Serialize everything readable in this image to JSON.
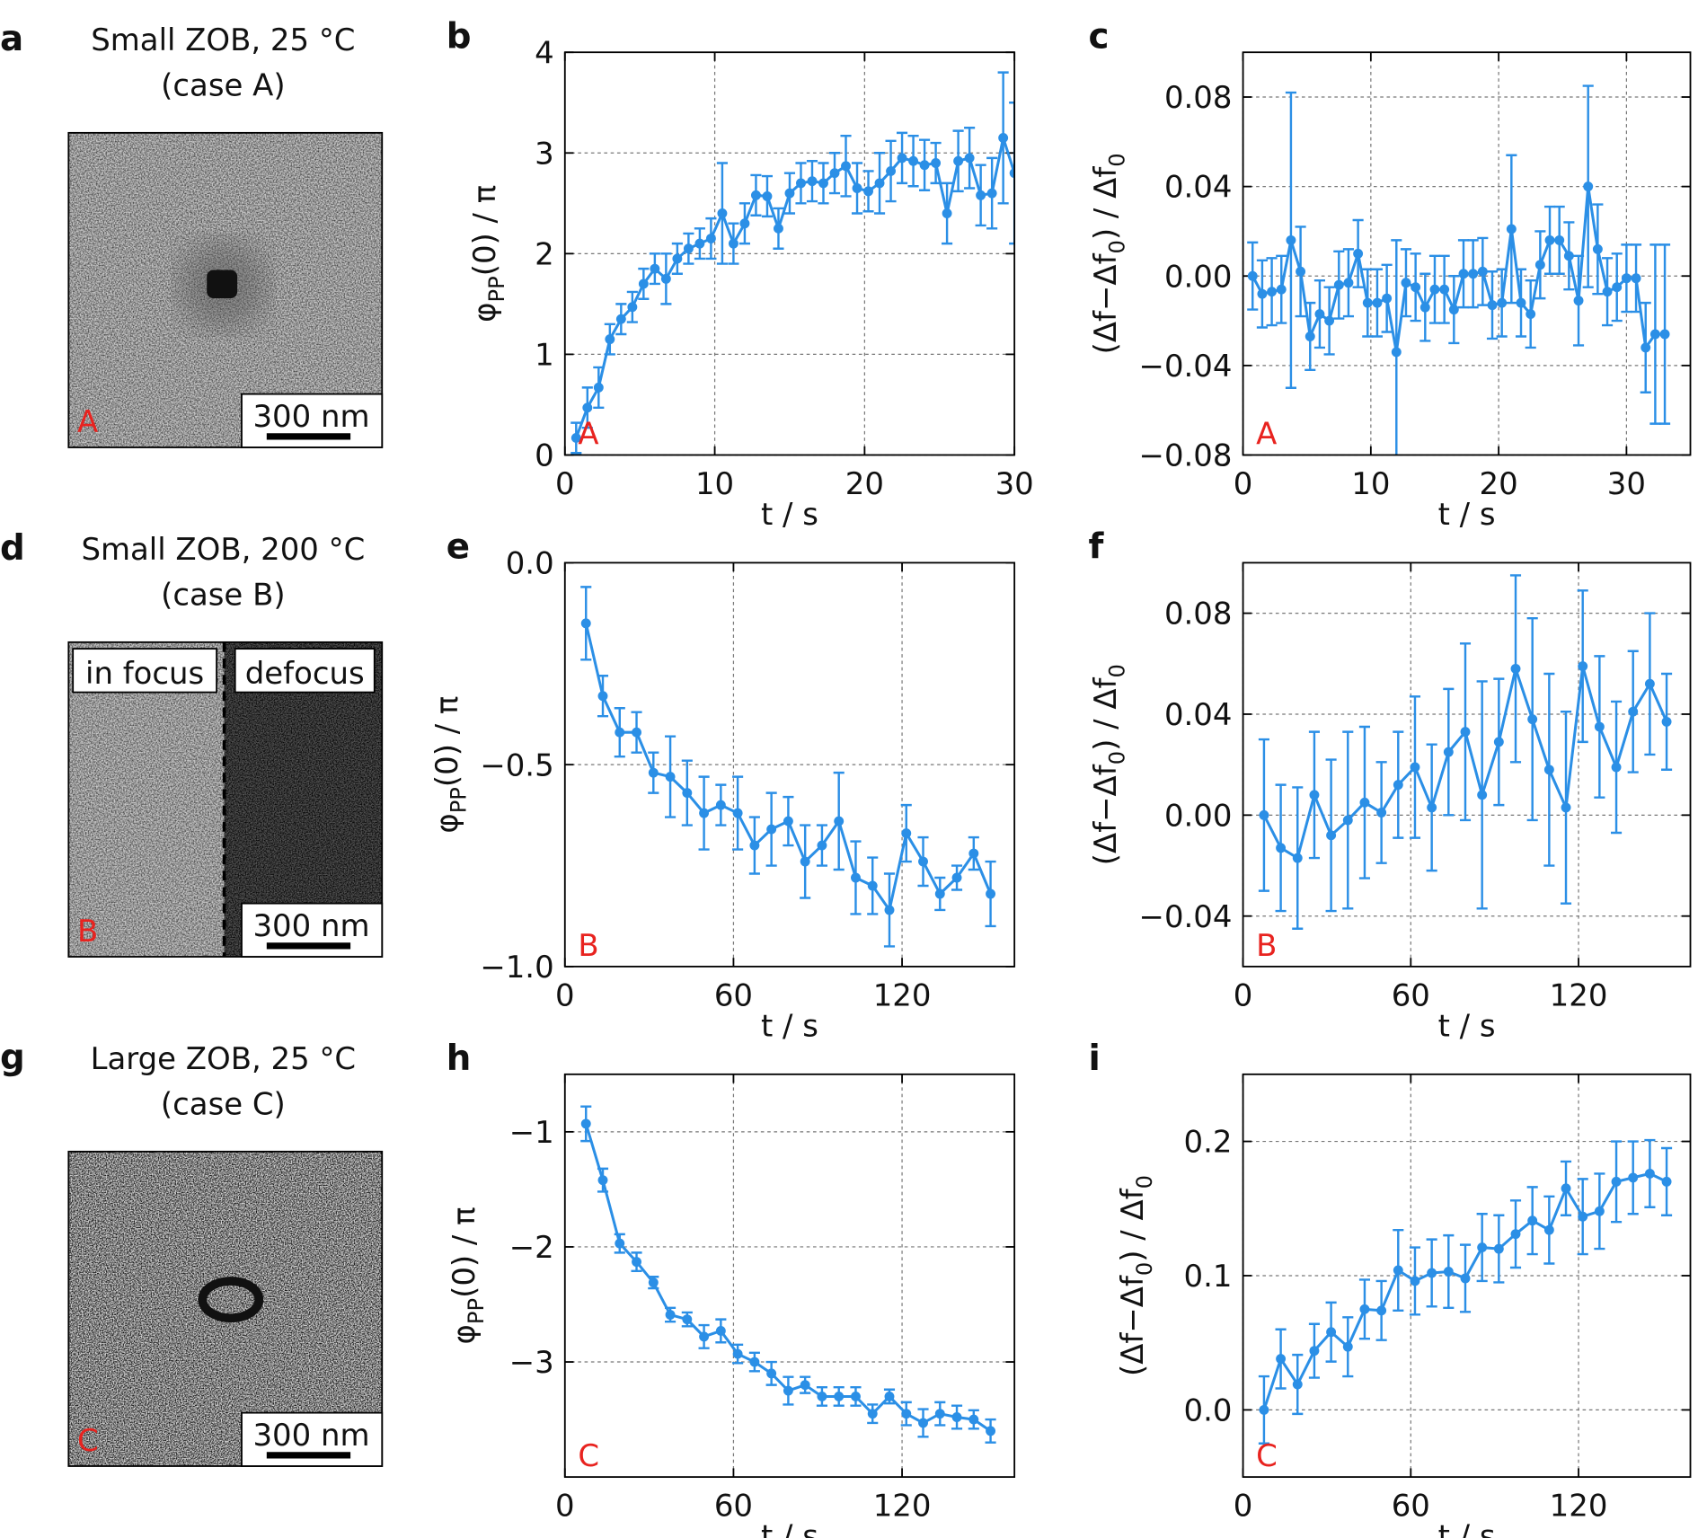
{
  "images": [
    {
      "label": "a",
      "title": [
        "Small ZOB, 25 °C",
        "(case A)"
      ],
      "tag": "A",
      "scale_bar": "300 nm"
    },
    {
      "label": "d",
      "title": [
        "Small ZOB, 200 °C",
        "(case B)"
      ],
      "tag": "B",
      "scale_bar": "300 nm",
      "insets": [
        "in focus",
        "defocus"
      ]
    },
    {
      "label": "g",
      "title": [
        "Large ZOB, 25 °C",
        "(case C)"
      ],
      "tag": "C",
      "scale_bar": "300 nm"
    }
  ],
  "chart_data": [
    {
      "type": "line",
      "panel_label": "b",
      "annotation": "A",
      "xlabel": "t / s",
      "ylabel": [
        {
          "text": "φ"
        },
        {
          "text": "PP",
          "sub": true
        },
        {
          "text": "(0) / π"
        }
      ],
      "x": [
        0.75,
        1.5,
        2.25,
        3,
        3.75,
        4.5,
        5.25,
        6,
        6.75,
        7.5,
        8.25,
        9,
        9.75,
        10.5,
        11.25,
        12,
        12.75,
        13.5,
        14.25,
        15,
        15.75,
        16.5,
        17.25,
        18,
        18.75,
        19.5,
        20.25,
        21,
        21.75,
        22.5,
        23.25,
        24,
        24.75,
        25.5,
        26.25,
        27,
        27.75,
        28.5,
        29.25,
        30
      ],
      "series": [
        {
          "color": "#2b8fe6",
          "values": [
            0.17,
            0.47,
            0.67,
            1.15,
            1.35,
            1.47,
            1.7,
            1.85,
            1.75,
            1.95,
            2.05,
            2.1,
            2.15,
            2.4,
            2.1,
            2.3,
            2.58,
            2.57,
            2.25,
            2.6,
            2.7,
            2.72,
            2.7,
            2.8,
            2.87,
            2.65,
            2.62,
            2.7,
            2.82,
            2.95,
            2.92,
            2.88,
            2.9,
            2.4,
            2.92,
            2.95,
            2.58,
            2.6,
            3.15,
            2.8
          ],
          "errors": [
            0.15,
            0.2,
            0.2,
            0.15,
            0.15,
            0.15,
            0.15,
            0.15,
            0.25,
            0.15,
            0.15,
            0.15,
            0.2,
            0.5,
            0.2,
            0.2,
            0.2,
            0.2,
            0.2,
            0.2,
            0.2,
            0.2,
            0.2,
            0.2,
            0.3,
            0.25,
            0.2,
            0.3,
            0.3,
            0.25,
            0.25,
            0.25,
            0.2,
            0.3,
            0.3,
            0.3,
            0.3,
            0.35,
            0.65,
            0.7
          ]
        }
      ],
      "xlim": [
        0,
        30
      ],
      "ylim": [
        0,
        4
      ],
      "xticks": [
        0,
        10,
        20,
        30
      ],
      "yticks": [
        0,
        1,
        2,
        3,
        4
      ],
      "grid": true
    },
    {
      "type": "line",
      "panel_label": "c",
      "annotation": "A",
      "xlabel": "t / s",
      "ylabel": [
        {
          "text": "(Δf−Δf"
        },
        {
          "text": "0",
          "sub": true
        },
        {
          "text": ") / Δf"
        },
        {
          "text": "0",
          "sub": true
        }
      ],
      "x": [
        0.75,
        1.5,
        2.25,
        3,
        3.75,
        4.5,
        5.25,
        6,
        6.75,
        7.5,
        8.25,
        9,
        9.75,
        10.5,
        11.25,
        12,
        12.75,
        13.5,
        14.25,
        15,
        15.75,
        16.5,
        17.25,
        18,
        18.75,
        19.5,
        20.25,
        21,
        21.75,
        22.5,
        23.25,
        24,
        24.75,
        25.5,
        26.25,
        27,
        27.75,
        28.5,
        29.25,
        30,
        30.75,
        31.5,
        32.25,
        33
      ],
      "series": [
        {
          "color": "#2b8fe6",
          "values": [
            0.0,
            -0.008,
            -0.007,
            -0.006,
            0.016,
            0.002,
            -0.027,
            -0.017,
            -0.02,
            -0.004,
            -0.003,
            0.01,
            -0.012,
            -0.012,
            -0.01,
            -0.034,
            -0.003,
            -0.005,
            -0.014,
            -0.006,
            -0.006,
            -0.015,
            0.001,
            0.001,
            0.002,
            -0.013,
            -0.012,
            0.021,
            -0.012,
            -0.017,
            0.005,
            0.016,
            0.016,
            0.009,
            -0.011,
            0.04,
            0.012,
            -0.007,
            -0.005,
            -0.001,
            -0.001,
            -0.032,
            -0.026,
            -0.026
          ],
          "errors": [
            0.015,
            0.015,
            0.015,
            0.015,
            0.066,
            0.02,
            0.015,
            0.015,
            0.015,
            0.015,
            0.015,
            0.015,
            0.015,
            0.015,
            0.015,
            0.05,
            0.015,
            0.015,
            0.015,
            0.015,
            0.015,
            0.015,
            0.015,
            0.015,
            0.015,
            0.015,
            0.015,
            0.033,
            0.015,
            0.015,
            0.015,
            0.015,
            0.015,
            0.015,
            0.02,
            0.045,
            0.02,
            0.015,
            0.015,
            0.015,
            0.015,
            0.02,
            0.04,
            0.04
          ]
        }
      ],
      "xlim": [
        0,
        35
      ],
      "ylim": [
        -0.08,
        0.1
      ],
      "xticks": [
        0,
        10,
        20,
        30
      ],
      "yticks": [
        {
          "value": -0.08,
          "label": "−0.08"
        },
        {
          "value": -0.04,
          "label": "−0.04"
        },
        {
          "value": 0,
          "label": "0.00"
        },
        0.04,
        0.08
      ],
      "grid": true
    },
    {
      "type": "line",
      "panel_label": "e",
      "annotation": "B",
      "xlabel": "t / s",
      "ylabel": [
        {
          "text": "φ"
        },
        {
          "text": "PP",
          "sub": true
        },
        {
          "text": "(0) / π"
        }
      ],
      "x": [
        7.5,
        13.5,
        19.5,
        25.5,
        31.5,
        37.5,
        43.5,
        49.5,
        55.5,
        61.5,
        67.5,
        73.5,
        79.5,
        85.5,
        91.5,
        97.5,
        103.5,
        109.5,
        115.5,
        121.5,
        127.5,
        133.5,
        139.5,
        145.5,
        151.5
      ],
      "series": [
        {
          "color": "#2b8fe6",
          "values": [
            -0.15,
            -0.33,
            -0.42,
            -0.42,
            -0.52,
            -0.53,
            -0.57,
            -0.62,
            -0.6,
            -0.62,
            -0.7,
            -0.66,
            -0.64,
            -0.74,
            -0.7,
            -0.64,
            -0.78,
            -0.8,
            -0.86,
            -0.67,
            -0.74,
            -0.82,
            -0.78,
            -0.72,
            -0.82
          ],
          "errors": [
            0.09,
            0.05,
            0.06,
            0.05,
            0.05,
            0.1,
            0.08,
            0.09,
            0.05,
            0.09,
            0.07,
            0.09,
            0.06,
            0.09,
            0.05,
            0.12,
            0.09,
            0.07,
            0.09,
            0.07,
            0.06,
            0.04,
            0.03,
            0.04,
            0.08
          ]
        }
      ],
      "xlim": [
        0,
        160
      ],
      "ylim": [
        -1,
        0
      ],
      "xticks": [
        0,
        60,
        120
      ],
      "yticks": [
        {
          "value": -1,
          "label": "−1.0"
        },
        {
          "value": -0.5,
          "label": "−0.5"
        },
        {
          "value": 0,
          "label": "0.0"
        }
      ],
      "grid": true
    },
    {
      "type": "line",
      "panel_label": "f",
      "annotation": "B",
      "xlabel": "t / s",
      "ylabel": [
        {
          "text": "(Δf−Δf"
        },
        {
          "text": "0",
          "sub": true
        },
        {
          "text": ") / Δf"
        },
        {
          "text": "0",
          "sub": true
        }
      ],
      "x": [
        7.5,
        13.5,
        19.5,
        25.5,
        31.5,
        37.5,
        43.5,
        49.5,
        55.5,
        61.5,
        67.5,
        73.5,
        79.5,
        85.5,
        91.5,
        97.5,
        103.5,
        109.5,
        115.5,
        121.5,
        127.5,
        133.5,
        139.5,
        145.5,
        151.5
      ],
      "series": [
        {
          "color": "#2b8fe6",
          "values": [
            0.0,
            -0.013,
            -0.017,
            0.008,
            -0.008,
            -0.002,
            0.005,
            0.001,
            0.012,
            0.019,
            0.003,
            0.025,
            0.033,
            0.008,
            0.029,
            0.058,
            0.038,
            0.018,
            0.003,
            0.059,
            0.035,
            0.019,
            0.041,
            0.052,
            0.037
          ],
          "errors": [
            0.03,
            0.025,
            0.028,
            0.025,
            0.03,
            0.035,
            0.03,
            0.02,
            0.021,
            0.028,
            0.025,
            0.025,
            0.035,
            0.045,
            0.025,
            0.037,
            0.04,
            0.038,
            0.038,
            0.03,
            0.028,
            0.026,
            0.024,
            0.028,
            0.019
          ]
        }
      ],
      "xlim": [
        0,
        160
      ],
      "ylim": [
        -0.06,
        0.1
      ],
      "xticks": [
        0,
        60,
        120
      ],
      "yticks": [
        {
          "value": -0.04,
          "label": "−0.04"
        },
        {
          "value": 0,
          "label": "0.00"
        },
        0.04,
        0.08
      ],
      "grid": true
    },
    {
      "type": "line",
      "panel_label": "h",
      "annotation": "C",
      "xlabel": "t / s",
      "ylabel": [
        {
          "text": "φ"
        },
        {
          "text": "PP",
          "sub": true
        },
        {
          "text": "(0) / π"
        }
      ],
      "x": [
        7.5,
        13.5,
        19.5,
        25.5,
        31.5,
        37.5,
        43.5,
        49.5,
        55.5,
        61.5,
        67.5,
        73.5,
        79.5,
        85.5,
        91.5,
        97.5,
        103.5,
        109.5,
        115.5,
        121.5,
        127.5,
        133.5,
        139.5,
        145.5,
        151.5
      ],
      "series": [
        {
          "color": "#2b8fe6",
          "values": [
            -0.93,
            -1.42,
            -1.97,
            -2.13,
            -2.31,
            -2.59,
            -2.63,
            -2.78,
            -2.73,
            -2.93,
            -3.0,
            -3.1,
            -3.25,
            -3.2,
            -3.3,
            -3.3,
            -3.3,
            -3.45,
            -3.3,
            -3.45,
            -3.53,
            -3.45,
            -3.48,
            -3.5,
            -3.6
          ],
          "errors": [
            0.15,
            0.1,
            0.08,
            0.08,
            0.05,
            0.06,
            0.06,
            0.1,
            0.1,
            0.08,
            0.08,
            0.1,
            0.12,
            0.07,
            0.08,
            0.08,
            0.08,
            0.08,
            0.06,
            0.1,
            0.12,
            0.1,
            0.1,
            0.08,
            0.1
          ]
        }
      ],
      "xlim": [
        0,
        160
      ],
      "ylim": [
        -4,
        -0.5
      ],
      "xticks": [
        0,
        60,
        120
      ],
      "yticks": [
        {
          "value": -3,
          "label": "−3"
        },
        {
          "value": -2,
          "label": "−2"
        },
        {
          "value": -1,
          "label": "−1"
        }
      ],
      "grid": true
    },
    {
      "type": "line",
      "panel_label": "i",
      "annotation": "C",
      "xlabel": "t / s",
      "ylabel": [
        {
          "text": "(Δf−Δf"
        },
        {
          "text": "0",
          "sub": true
        },
        {
          "text": ") / Δf"
        },
        {
          "text": "0",
          "sub": true
        }
      ],
      "x": [
        7.5,
        13.5,
        19.5,
        25.5,
        31.5,
        37.5,
        43.5,
        49.5,
        55.5,
        61.5,
        67.5,
        73.5,
        79.5,
        85.5,
        91.5,
        97.5,
        103.5,
        109.5,
        115.5,
        121.5,
        127.5,
        133.5,
        139.5,
        145.5,
        151.5
      ],
      "series": [
        {
          "color": "#2b8fe6",
          "values": [
            0.0,
            0.038,
            0.019,
            0.044,
            0.058,
            0.047,
            0.075,
            0.074,
            0.104,
            0.096,
            0.102,
            0.103,
            0.098,
            0.121,
            0.12,
            0.131,
            0.141,
            0.134,
            0.165,
            0.144,
            0.148,
            0.17,
            0.173,
            0.176,
            0.17
          ],
          "errors": [
            0.025,
            0.022,
            0.022,
            0.02,
            0.022,
            0.022,
            0.022,
            0.022,
            0.03,
            0.025,
            0.025,
            0.027,
            0.025,
            0.025,
            0.025,
            0.025,
            0.025,
            0.025,
            0.02,
            0.028,
            0.028,
            0.03,
            0.027,
            0.025,
            0.025
          ]
        }
      ],
      "xlim": [
        0,
        160
      ],
      "ylim": [
        -0.05,
        0.25
      ],
      "xticks": [
        0,
        60,
        120
      ],
      "yticks": [
        {
          "value": 0,
          "label": "0.0"
        },
        0.1,
        0.2
      ],
      "grid": true
    }
  ]
}
